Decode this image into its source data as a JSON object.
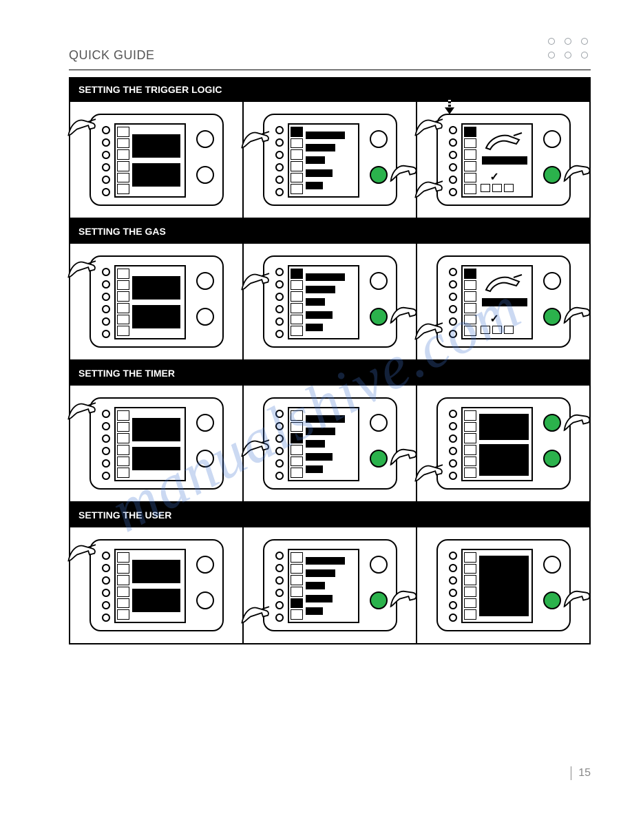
{
  "page": {
    "heading": "QUICK GUIDE",
    "page_number": "15",
    "watermark": "manualshive.com"
  },
  "sections": [
    {
      "title": "SETTING THE TRIGGER LOGIC",
      "panels": [
        {
          "screen": "welcome",
          "hand_button": 0,
          "knob1_green": false,
          "knob2_green": false,
          "hand_knob": false
        },
        {
          "screen": "menu_bars",
          "hand_button": 1,
          "knob1_green": false,
          "knob2_green": true,
          "hand_knob": true
        },
        {
          "screen": "trigger_detail",
          "hand_button": 0,
          "knob1_green": false,
          "knob2_green": true,
          "hand_knob": true,
          "arrow": true,
          "second_hand_button": 5
        }
      ]
    },
    {
      "title": "SETTING THE GAS",
      "panels": [
        {
          "screen": "welcome",
          "hand_button": 0,
          "knob1_green": false,
          "knob2_green": false,
          "hand_knob": false
        },
        {
          "screen": "menu_bars",
          "hand_button": 1,
          "knob1_green": false,
          "knob2_green": true,
          "hand_knob": true
        },
        {
          "screen": "gas_detail",
          "hand_button": 5,
          "knob1_green": false,
          "knob2_green": true,
          "hand_knob": true
        }
      ]
    },
    {
      "title": "SETTING THE TIMER",
      "panels": [
        {
          "screen": "welcome",
          "hand_button": 0,
          "knob1_green": false,
          "knob2_green": false,
          "hand_knob": false
        },
        {
          "screen": "menu_bars_timer",
          "hand_button": 3,
          "knob1_green": false,
          "knob2_green": true,
          "hand_knob": true
        },
        {
          "screen": "timer_detail",
          "hand_button": 5,
          "knob1_green": true,
          "knob2_green": true,
          "hand_knob": true,
          "hand_knob_top": true
        }
      ]
    },
    {
      "title": "SETTING THE USER",
      "panels": [
        {
          "screen": "welcome",
          "hand_button": 0,
          "knob1_green": false,
          "knob2_green": false,
          "hand_knob": false
        },
        {
          "screen": "menu_bars_user",
          "hand_button": 5,
          "knob1_green": false,
          "knob2_green": true,
          "hand_knob": true
        },
        {
          "screen": "user_detail",
          "hand_button": null,
          "knob1_green": false,
          "knob2_green": true,
          "hand_knob": true
        }
      ]
    }
  ],
  "colors": {
    "green": "#2bb24c",
    "watermark": "rgba(70,120,210,0.28)"
  }
}
